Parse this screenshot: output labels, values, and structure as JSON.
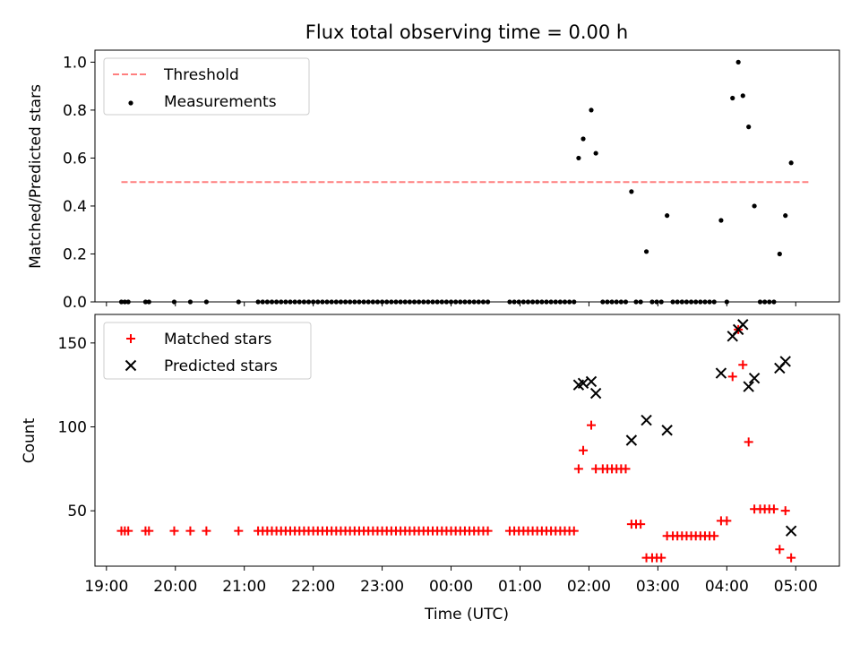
{
  "chart_data": [
    {
      "type": "scatter",
      "title": "Flux total observing time = 0.00 h",
      "xlabel": "",
      "ylabel": "Matched/Predicted stars",
      "xlim": [
        "18:50",
        "05:38"
      ],
      "ylim": [
        0,
        1.05
      ],
      "yticks": [
        0.0,
        0.2,
        0.4,
        0.6,
        0.8,
        1.0
      ],
      "ytick_labels": [
        "0.0",
        "0.2",
        "0.4",
        "0.6",
        "0.8",
        "1.0"
      ],
      "legend_position": "upper-left",
      "grid": false,
      "series": [
        {
          "name": "Threshold",
          "kind": "dashed-line",
          "color": "#ff7f7f",
          "points": [
            [
              "19:13",
              0.5
            ],
            [
              "05:11",
              0.5
            ]
          ]
        },
        {
          "name": "Measurements",
          "kind": "scatter",
          "marker": "dot",
          "color": "#000000",
          "points": [
            [
              "19:13",
              0.0
            ],
            [
              "19:16",
              0.0
            ],
            [
              "19:19",
              0.0
            ],
            [
              "19:34",
              0.0
            ],
            [
              "19:37",
              0.0
            ],
            [
              "19:59",
              0.0
            ],
            [
              "20:13",
              0.0
            ],
            [
              "20:27",
              0.0
            ],
            [
              "20:55",
              0.0
            ],
            [
              "21:12",
              0.0
            ],
            [
              "21:16",
              0.0
            ],
            [
              "21:20",
              0.0
            ],
            [
              "21:24",
              0.0
            ],
            [
              "21:28",
              0.0
            ],
            [
              "21:32",
              0.0
            ],
            [
              "21:36",
              0.0
            ],
            [
              "21:40",
              0.0
            ],
            [
              "21:44",
              0.0
            ],
            [
              "21:48",
              0.0
            ],
            [
              "21:52",
              0.0
            ],
            [
              "21:56",
              0.0
            ],
            [
              "22:00",
              0.0
            ],
            [
              "22:04",
              0.0
            ],
            [
              "22:08",
              0.0
            ],
            [
              "22:12",
              0.0
            ],
            [
              "22:16",
              0.0
            ],
            [
              "22:20",
              0.0
            ],
            [
              "22:24",
              0.0
            ],
            [
              "22:28",
              0.0
            ],
            [
              "22:32",
              0.0
            ],
            [
              "22:36",
              0.0
            ],
            [
              "22:40",
              0.0
            ],
            [
              "22:44",
              0.0
            ],
            [
              "22:48",
              0.0
            ],
            [
              "22:52",
              0.0
            ],
            [
              "22:56",
              0.0
            ],
            [
              "23:00",
              0.0
            ],
            [
              "23:04",
              0.0
            ],
            [
              "23:08",
              0.0
            ],
            [
              "23:12",
              0.0
            ],
            [
              "23:16",
              0.0
            ],
            [
              "23:20",
              0.0
            ],
            [
              "23:24",
              0.0
            ],
            [
              "23:28",
              0.0
            ],
            [
              "23:32",
              0.0
            ],
            [
              "23:36",
              0.0
            ],
            [
              "23:40",
              0.0
            ],
            [
              "23:44",
              0.0
            ],
            [
              "23:48",
              0.0
            ],
            [
              "23:52",
              0.0
            ],
            [
              "23:56",
              0.0
            ],
            [
              "00:00",
              0.0
            ],
            [
              "00:04",
              0.0
            ],
            [
              "00:08",
              0.0
            ],
            [
              "00:12",
              0.0
            ],
            [
              "00:16",
              0.0
            ],
            [
              "00:20",
              0.0
            ],
            [
              "00:24",
              0.0
            ],
            [
              "00:28",
              0.0
            ],
            [
              "00:32",
              0.0
            ],
            [
              "00:51",
              0.0
            ],
            [
              "00:55",
              0.0
            ],
            [
              "00:59",
              0.0
            ],
            [
              "01:03",
              0.0
            ],
            [
              "01:07",
              0.0
            ],
            [
              "01:11",
              0.0
            ],
            [
              "01:15",
              0.0
            ],
            [
              "01:19",
              0.0
            ],
            [
              "01:23",
              0.0
            ],
            [
              "01:27",
              0.0
            ],
            [
              "01:31",
              0.0
            ],
            [
              "01:35",
              0.0
            ],
            [
              "01:39",
              0.0
            ],
            [
              "01:43",
              0.0
            ],
            [
              "01:47",
              0.0
            ],
            [
              "01:51",
              0.6
            ],
            [
              "01:55",
              0.68
            ],
            [
              "02:02",
              0.8
            ],
            [
              "02:06",
              0.62
            ],
            [
              "02:12",
              0.0
            ],
            [
              "02:16",
              0.0
            ],
            [
              "02:20",
              0.0
            ],
            [
              "02:24",
              0.0
            ],
            [
              "02:28",
              0.0
            ],
            [
              "02:32",
              0.0
            ],
            [
              "02:37",
              0.46
            ],
            [
              "02:41",
              0.0
            ],
            [
              "02:45",
              0.0
            ],
            [
              "02:50",
              0.21
            ],
            [
              "02:55",
              0.0
            ],
            [
              "02:59",
              0.0
            ],
            [
              "03:03",
              0.0
            ],
            [
              "03:08",
              0.36
            ],
            [
              "03:13",
              0.0
            ],
            [
              "03:17",
              0.0
            ],
            [
              "03:21",
              0.0
            ],
            [
              "03:25",
              0.0
            ],
            [
              "03:29",
              0.0
            ],
            [
              "03:33",
              0.0
            ],
            [
              "03:37",
              0.0
            ],
            [
              "03:41",
              0.0
            ],
            [
              "03:45",
              0.0
            ],
            [
              "03:49",
              0.0
            ],
            [
              "03:55",
              0.34
            ],
            [
              "04:00",
              0.0
            ],
            [
              "04:05",
              0.85
            ],
            [
              "04:10",
              1.0
            ],
            [
              "04:14",
              0.86
            ],
            [
              "04:19",
              0.73
            ],
            [
              "04:24",
              0.4
            ],
            [
              "04:29",
              0.0
            ],
            [
              "04:33",
              0.0
            ],
            [
              "04:37",
              0.0
            ],
            [
              "04:41",
              0.0
            ],
            [
              "04:46",
              0.2
            ],
            [
              "04:51",
              0.36
            ],
            [
              "04:56",
              0.58
            ]
          ]
        }
      ]
    },
    {
      "type": "scatter",
      "title": "",
      "xlabel": "Time (UTC)",
      "ylabel": "Count",
      "xlim": [
        "18:50",
        "05:38"
      ],
      "ylim": [
        17,
        167
      ],
      "yticks": [
        50,
        100,
        150
      ],
      "ytick_labels": [
        "50",
        "100",
        "150"
      ],
      "xticks": [
        "19:00",
        "20:00",
        "21:00",
        "22:00",
        "23:00",
        "00:00",
        "01:00",
        "02:00",
        "03:00",
        "04:00",
        "05:00"
      ],
      "xtick_labels": [
        "19:00",
        "20:00",
        "21:00",
        "22:00",
        "23:00",
        "00:00",
        "01:00",
        "02:00",
        "03:00",
        "04:00",
        "05:00"
      ],
      "legend_position": "upper-left",
      "grid": false,
      "series": [
        {
          "name": "Matched stars",
          "kind": "scatter",
          "marker": "plus",
          "color": "#ff0000",
          "points": [
            [
              "19:13",
              38
            ],
            [
              "19:16",
              38
            ],
            [
              "19:19",
              38
            ],
            [
              "19:34",
              38
            ],
            [
              "19:37",
              38
            ],
            [
              "19:59",
              38
            ],
            [
              "20:13",
              38
            ],
            [
              "20:27",
              38
            ],
            [
              "20:55",
              38
            ],
            [
              "21:12",
              38
            ],
            [
              "21:16",
              38
            ],
            [
              "21:20",
              38
            ],
            [
              "21:24",
              38
            ],
            [
              "21:28",
              38
            ],
            [
              "21:32",
              38
            ],
            [
              "21:36",
              38
            ],
            [
              "21:40",
              38
            ],
            [
              "21:44",
              38
            ],
            [
              "21:48",
              38
            ],
            [
              "21:52",
              38
            ],
            [
              "21:56",
              38
            ],
            [
              "22:00",
              38
            ],
            [
              "22:04",
              38
            ],
            [
              "22:08",
              38
            ],
            [
              "22:12",
              38
            ],
            [
              "22:16",
              38
            ],
            [
              "22:20",
              38
            ],
            [
              "22:24",
              38
            ],
            [
              "22:28",
              38
            ],
            [
              "22:32",
              38
            ],
            [
              "22:36",
              38
            ],
            [
              "22:40",
              38
            ],
            [
              "22:44",
              38
            ],
            [
              "22:48",
              38
            ],
            [
              "22:52",
              38
            ],
            [
              "22:56",
              38
            ],
            [
              "23:00",
              38
            ],
            [
              "23:04",
              38
            ],
            [
              "23:08",
              38
            ],
            [
              "23:12",
              38
            ],
            [
              "23:16",
              38
            ],
            [
              "23:20",
              38
            ],
            [
              "23:24",
              38
            ],
            [
              "23:28",
              38
            ],
            [
              "23:32",
              38
            ],
            [
              "23:36",
              38
            ],
            [
              "23:40",
              38
            ],
            [
              "23:44",
              38
            ],
            [
              "23:48",
              38
            ],
            [
              "23:52",
              38
            ],
            [
              "23:56",
              38
            ],
            [
              "00:00",
              38
            ],
            [
              "00:04",
              38
            ],
            [
              "00:08",
              38
            ],
            [
              "00:12",
              38
            ],
            [
              "00:16",
              38
            ],
            [
              "00:20",
              38
            ],
            [
              "00:24",
              38
            ],
            [
              "00:28",
              38
            ],
            [
              "00:32",
              38
            ],
            [
              "00:51",
              38
            ],
            [
              "00:55",
              38
            ],
            [
              "00:59",
              38
            ],
            [
              "01:03",
              38
            ],
            [
              "01:07",
              38
            ],
            [
              "01:11",
              38
            ],
            [
              "01:15",
              38
            ],
            [
              "01:19",
              38
            ],
            [
              "01:23",
              38
            ],
            [
              "01:27",
              38
            ],
            [
              "01:31",
              38
            ],
            [
              "01:35",
              38
            ],
            [
              "01:39",
              38
            ],
            [
              "01:43",
              38
            ],
            [
              "01:47",
              38
            ],
            [
              "01:51",
              75
            ],
            [
              "01:55",
              86
            ],
            [
              "02:02",
              101
            ],
            [
              "02:06",
              75
            ],
            [
              "02:12",
              75
            ],
            [
              "02:16",
              75
            ],
            [
              "02:20",
              75
            ],
            [
              "02:24",
              75
            ],
            [
              "02:28",
              75
            ],
            [
              "02:32",
              75
            ],
            [
              "02:37",
              42
            ],
            [
              "02:41",
              42
            ],
            [
              "02:45",
              42
            ],
            [
              "02:50",
              22
            ],
            [
              "02:55",
              22
            ],
            [
              "02:59",
              22
            ],
            [
              "03:03",
              22
            ],
            [
              "03:08",
              35
            ],
            [
              "03:13",
              35
            ],
            [
              "03:17",
              35
            ],
            [
              "03:21",
              35
            ],
            [
              "03:25",
              35
            ],
            [
              "03:29",
              35
            ],
            [
              "03:33",
              35
            ],
            [
              "03:37",
              35
            ],
            [
              "03:41",
              35
            ],
            [
              "03:45",
              35
            ],
            [
              "03:49",
              35
            ],
            [
              "03:55",
              44
            ],
            [
              "04:00",
              44
            ],
            [
              "04:05",
              130
            ],
            [
              "04:10",
              158
            ],
            [
              "04:14",
              137
            ],
            [
              "04:19",
              91
            ],
            [
              "04:24",
              51
            ],
            [
              "04:29",
              51
            ],
            [
              "04:33",
              51
            ],
            [
              "04:37",
              51
            ],
            [
              "04:41",
              51
            ],
            [
              "04:46",
              27
            ],
            [
              "04:51",
              50
            ],
            [
              "04:56",
              22
            ]
          ]
        },
        {
          "name": "Predicted stars",
          "kind": "scatter",
          "marker": "x",
          "color": "#000000",
          "points": [
            [
              "01:51",
              125
            ],
            [
              "01:55",
              126
            ],
            [
              "02:02",
              127
            ],
            [
              "02:06",
              120
            ],
            [
              "02:37",
              92
            ],
            [
              "02:50",
              104
            ],
            [
              "03:08",
              98
            ],
            [
              "03:55",
              132
            ],
            [
              "04:05",
              154
            ],
            [
              "04:10",
              158
            ],
            [
              "04:14",
              161
            ],
            [
              "04:19",
              124
            ],
            [
              "04:24",
              129
            ],
            [
              "04:46",
              135
            ],
            [
              "04:51",
              139
            ],
            [
              "04:56",
              38
            ]
          ]
        }
      ]
    }
  ]
}
